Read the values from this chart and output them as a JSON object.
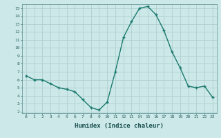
{
  "x": [
    0,
    1,
    2,
    3,
    4,
    5,
    6,
    7,
    8,
    9,
    10,
    11,
    12,
    13,
    14,
    15,
    16,
    17,
    18,
    19,
    20,
    21,
    22,
    23
  ],
  "y": [
    6.5,
    6.0,
    6.0,
    5.5,
    5.0,
    4.8,
    4.5,
    3.5,
    2.5,
    2.2,
    3.2,
    7.0,
    11.3,
    13.3,
    15.0,
    15.2,
    14.2,
    12.2,
    9.5,
    7.5,
    5.2,
    5.0,
    5.2,
    3.8
  ],
  "xlabel": "Humidex (Indice chaleur)",
  "xlim": [
    -0.5,
    23.5
  ],
  "ylim": [
    1.8,
    15.5
  ],
  "yticks": [
    2,
    3,
    4,
    5,
    6,
    7,
    8,
    9,
    10,
    11,
    12,
    13,
    14,
    15
  ],
  "xticks": [
    0,
    1,
    2,
    3,
    4,
    5,
    6,
    7,
    8,
    9,
    10,
    11,
    12,
    13,
    14,
    15,
    16,
    17,
    18,
    19,
    20,
    21,
    22,
    23
  ],
  "line_color": "#1a7a6e",
  "marker": "+",
  "bg_color": "#cce8e8",
  "grid_color": "#b0d0d0",
  "tick_color": "#2a6060",
  "label_color": "#1a5050",
  "spine_color": "#5a9090"
}
